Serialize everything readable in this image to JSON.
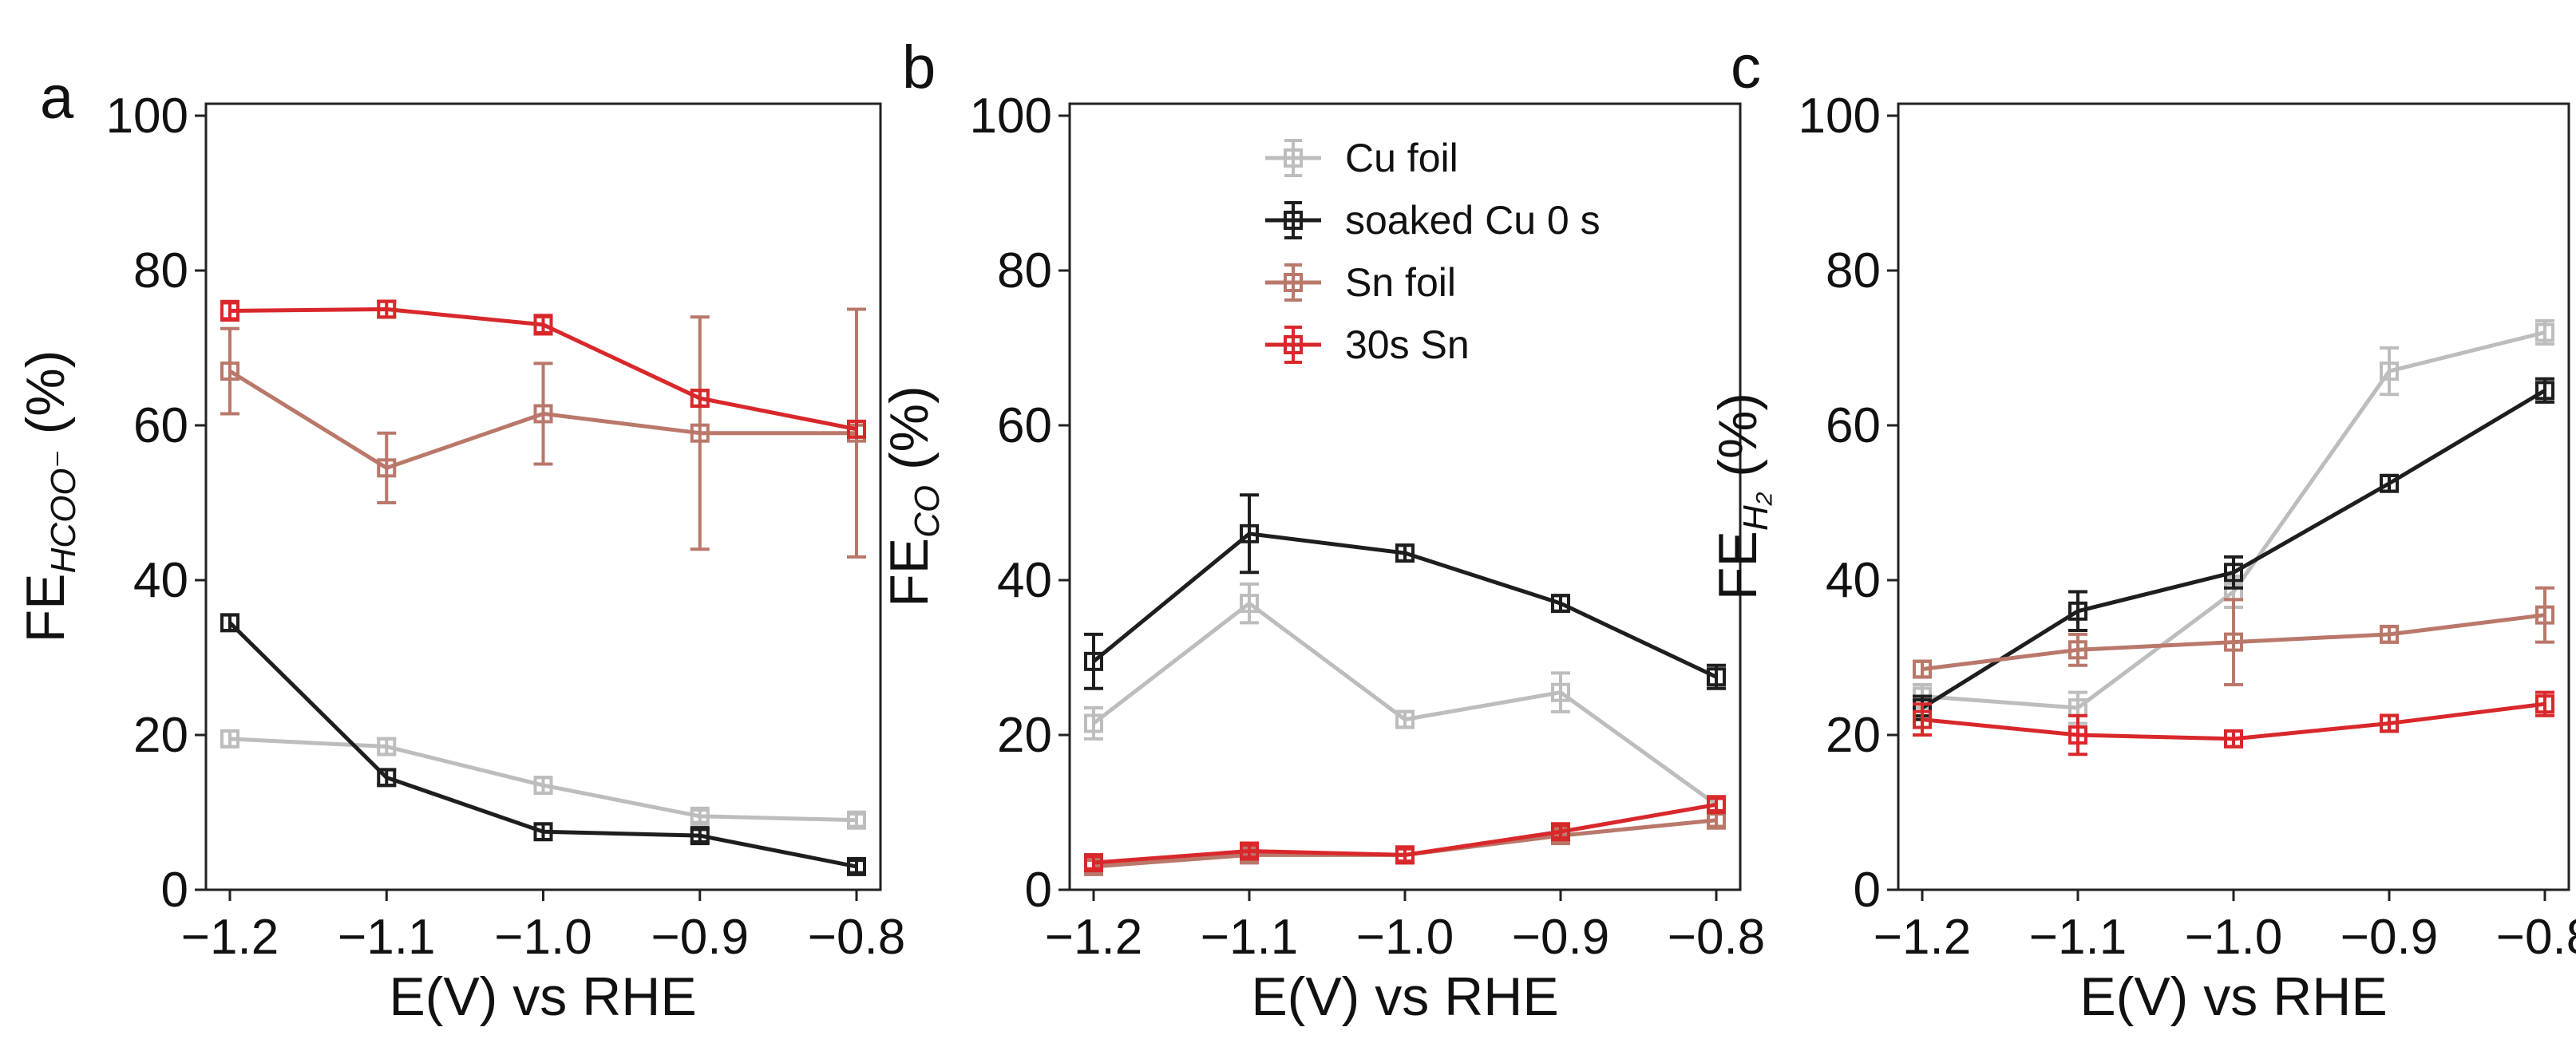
{
  "figure": {
    "x_ticks": [
      -1.2,
      -1.1,
      -1.0,
      -0.9,
      -0.8
    ],
    "x_tick_labels": [
      "−1.2",
      "−1.1",
      "−1.0",
      "−0.9",
      "−0.8"
    ],
    "y_ticks": [
      0,
      20,
      40,
      60,
      80,
      100
    ],
    "y_tick_labels": [
      "0",
      "20",
      "40",
      "60",
      "80",
      "100"
    ],
    "xlabel": "E(V) vs RHE"
  },
  "series_styles": {
    "Cu foil": {
      "color": "#bdbdbd"
    },
    "soaked Cu 0 s": {
      "color": "#1e1e1e"
    },
    "Sn foil": {
      "color": "#b9786a"
    },
    "30s Sn": {
      "color": "#d8282b"
    }
  },
  "legend": {
    "panel": "b",
    "placement": "top-right",
    "entries": [
      "Cu foil",
      "soaked Cu 0 s",
      "Sn foil",
      "30s Sn"
    ]
  },
  "chart_data": [
    {
      "panel": "a",
      "type": "line",
      "ylabel_main": "FE",
      "ylabel_sub": "HCOO⁻",
      "ylabel_suffix": " (%)",
      "xlim": [
        -1.2,
        -0.8
      ],
      "ylim": [
        0,
        100
      ],
      "x": [
        -1.2,
        -1.1,
        -1.0,
        -0.9,
        -0.8
      ],
      "series": [
        {
          "name": "Cu foil",
          "values": [
            19.5,
            18.5,
            13.5,
            9.5,
            9.0
          ],
          "errors": [
            1.0,
            1.0,
            1.0,
            0.8,
            0.8
          ]
        },
        {
          "name": "soaked Cu 0 s",
          "values": [
            34.5,
            14.5,
            7.5,
            7.0,
            3.0
          ],
          "errors": [
            1.0,
            1.0,
            1.0,
            0.8,
            0.8
          ]
        },
        {
          "name": "Sn foil",
          "values": [
            67.0,
            54.5,
            61.5,
            59.0,
            59.0
          ],
          "errors": [
            5.5,
            4.5,
            6.5,
            15.0,
            16.0
          ]
        },
        {
          "name": "30s Sn",
          "values": [
            74.8,
            75.0,
            73.0,
            63.5,
            59.5
          ],
          "errors": [
            1.2,
            1.0,
            1.2,
            1.0,
            1.0
          ]
        }
      ]
    },
    {
      "panel": "b",
      "type": "line",
      "ylabel_main": "FE",
      "ylabel_sub": "CO",
      "ylabel_suffix": " (%)",
      "xlim": [
        -1.2,
        -0.8
      ],
      "ylim": [
        0,
        100
      ],
      "x": [
        -1.2,
        -1.1,
        -1.0,
        -0.9,
        -0.8
      ],
      "series": [
        {
          "name": "Cu foil",
          "values": [
            21.5,
            37.0,
            22.0,
            25.5,
            11.0
          ],
          "errors": [
            2.0,
            2.5,
            1.0,
            2.5,
            1.0
          ]
        },
        {
          "name": "soaked Cu 0 s",
          "values": [
            29.5,
            46.0,
            43.5,
            37.0,
            27.5
          ],
          "errors": [
            3.5,
            5.0,
            1.0,
            1.0,
            1.5
          ]
        },
        {
          "name": "Sn foil",
          "values": [
            3.0,
            4.5,
            4.5,
            7.0,
            9.0
          ],
          "errors": [
            0.8,
            0.8,
            0.8,
            0.8,
            0.8
          ]
        },
        {
          "name": "30s Sn",
          "values": [
            3.5,
            5.0,
            4.5,
            7.5,
            11.0
          ],
          "errors": [
            0.8,
            0.8,
            0.8,
            0.8,
            0.8
          ]
        }
      ]
    },
    {
      "panel": "c",
      "type": "line",
      "ylabel_main": "FE",
      "ylabel_sub": "H₂",
      "ylabel_suffix": " (%)",
      "xlim": [
        -1.2,
        -0.8
      ],
      "ylim": [
        0,
        100
      ],
      "x": [
        -1.2,
        -1.1,
        -1.0,
        -0.9,
        -0.8
      ],
      "series": [
        {
          "name": "Cu foil",
          "values": [
            25.0,
            23.5,
            38.5,
            67.0,
            72.0
          ],
          "errors": [
            1.5,
            2.0,
            2.0,
            3.0,
            1.5
          ]
        },
        {
          "name": "soaked Cu 0 s",
          "values": [
            23.5,
            36.0,
            41.0,
            52.5,
            64.5
          ],
          "errors": [
            1.5,
            2.5,
            2.0,
            1.0,
            1.5
          ]
        },
        {
          "name": "Sn foil",
          "values": [
            28.5,
            31.0,
            32.0,
            33.0,
            35.5
          ],
          "errors": [
            1.0,
            2.0,
            5.5,
            1.0,
            3.5
          ]
        },
        {
          "name": "30s Sn",
          "values": [
            22.0,
            20.0,
            19.5,
            21.5,
            24.0
          ],
          "errors": [
            2.0,
            2.5,
            1.0,
            1.0,
            1.5
          ]
        }
      ]
    }
  ]
}
